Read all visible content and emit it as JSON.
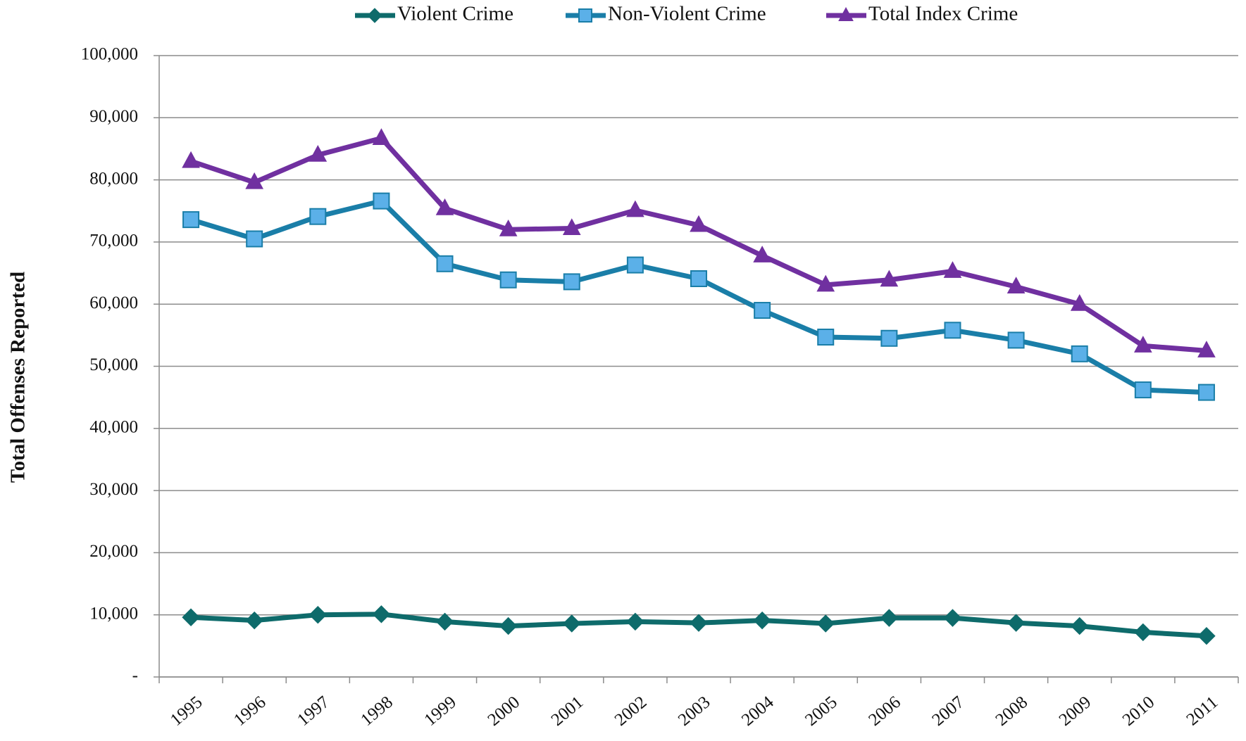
{
  "chart_data": {
    "type": "line",
    "y_label": "Total Offenses Reported",
    "categories": [
      "1995",
      "1996",
      "1997",
      "1998",
      "1999",
      "2000",
      "2001",
      "2002",
      "2003",
      "2004",
      "2005",
      "2006",
      "2007",
      "2008",
      "2009",
      "2010",
      "2011"
    ],
    "series": [
      {
        "name": "Violent Crime",
        "color": "#0e6b6b",
        "marker": "diamond",
        "marker_fill": "#0e6b6b",
        "values": [
          9600,
          9100,
          10000,
          10100,
          8900,
          8200,
          8600,
          8900,
          8700,
          9100,
          8600,
          9500,
          9500,
          8700,
          8200,
          7200,
          6600
        ]
      },
      {
        "name": "Non-Violent Crime",
        "color": "#1a7ea8",
        "marker": "square",
        "marker_fill": "#5bb0e8",
        "values": [
          73600,
          70500,
          74100,
          76600,
          66500,
          63900,
          63600,
          66300,
          64100,
          59000,
          54700,
          54500,
          55800,
          54200,
          52000,
          46200,
          45800
        ]
      },
      {
        "name": "Total Index Crime",
        "color": "#7030a0",
        "marker": "triangle",
        "marker_fill": "#7030a0",
        "values": [
          83000,
          79600,
          84000,
          86700,
          75400,
          72000,
          72200,
          75100,
          72700,
          67800,
          63100,
          63900,
          65300,
          62800,
          60000,
          53300,
          52500
        ]
      }
    ],
    "ylim": [
      0,
      100000
    ],
    "yticks": [
      {
        "value": 0,
        "label": "-"
      },
      {
        "value": 10000,
        "label": "10,000"
      },
      {
        "value": 20000,
        "label": "20,000"
      },
      {
        "value": 30000,
        "label": "30,000"
      },
      {
        "value": 40000,
        "label": "40,000"
      },
      {
        "value": 50000,
        "label": "50,000"
      },
      {
        "value": 60000,
        "label": "60,000"
      },
      {
        "value": 70000,
        "label": "70,000"
      },
      {
        "value": 80000,
        "label": "80,000"
      },
      {
        "value": 90000,
        "label": "90,000"
      },
      {
        "value": 100000,
        "label": "100,000"
      }
    ],
    "grid": true,
    "legend": "top"
  }
}
